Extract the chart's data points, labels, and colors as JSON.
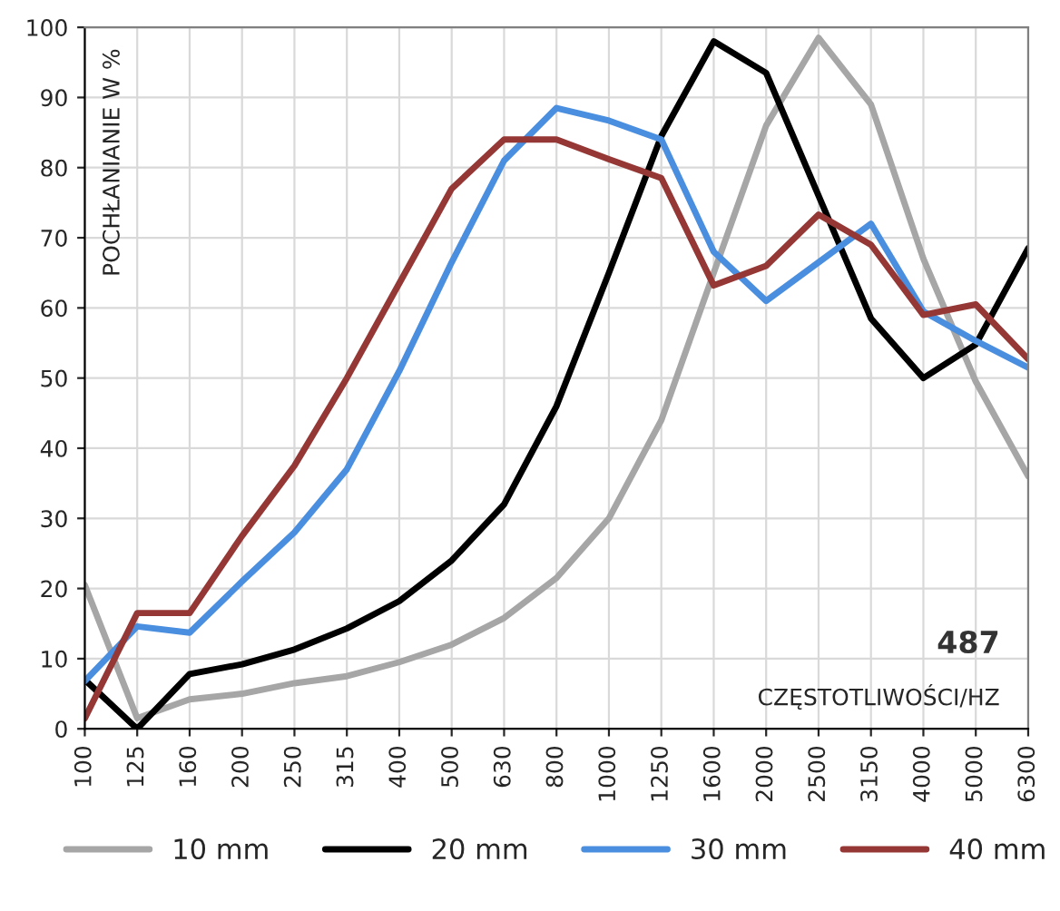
{
  "chart_data": {
    "type": "line",
    "ylabel": "POCHŁANIANIE W %",
    "xlabel": "CZĘSTOTLIWOŚCI/HZ",
    "annotations": [
      "487"
    ],
    "categories": [
      "100",
      "125",
      "160",
      "200",
      "250",
      "315",
      "400",
      "500",
      "630",
      "800",
      "1000",
      "1250",
      "1600",
      "2000",
      "2500",
      "3150",
      "4000",
      "5000",
      "6300"
    ],
    "series": [
      {
        "name": "10 mm",
        "color": "#a6a6a6",
        "values": [
          20.5,
          1.5,
          4.2,
          5,
          6.5,
          7.5,
          9.5,
          12,
          15.8,
          21.5,
          30,
          44,
          65,
          86,
          98.5,
          89,
          67,
          49.5,
          36
        ]
      },
      {
        "name": "20 mm",
        "color": "#000000",
        "values": [
          7,
          0,
          7.8,
          9.2,
          11.3,
          14.3,
          18.2,
          24,
          32,
          46,
          65,
          84.5,
          98,
          93.5,
          76,
          58.5,
          50,
          54.8,
          68.5
        ]
      },
      {
        "name": "30 mm",
        "color": "#4a8ee0",
        "values": [
          6.8,
          14.6,
          13.7,
          21,
          28,
          37,
          51,
          66.5,
          81,
          88.5,
          86.7,
          84,
          68,
          61,
          66.5,
          72,
          59.5,
          55.3,
          51.5
        ]
      },
      {
        "name": "40 mm",
        "color": "#953735",
        "values": [
          1.5,
          16.5,
          16.5,
          27.5,
          37.5,
          50,
          63.5,
          77,
          84,
          84,
          81.2,
          78.5,
          63.2,
          66,
          73.3,
          69,
          59,
          60.5,
          52.7
        ]
      }
    ],
    "ylim": [
      0,
      100
    ],
    "yticks": [
      0,
      10,
      20,
      30,
      40,
      50,
      60,
      70,
      80,
      90,
      100
    ],
    "grid": true,
    "legend": "bottom",
    "marker": "none",
    "line_style": "solid"
  }
}
